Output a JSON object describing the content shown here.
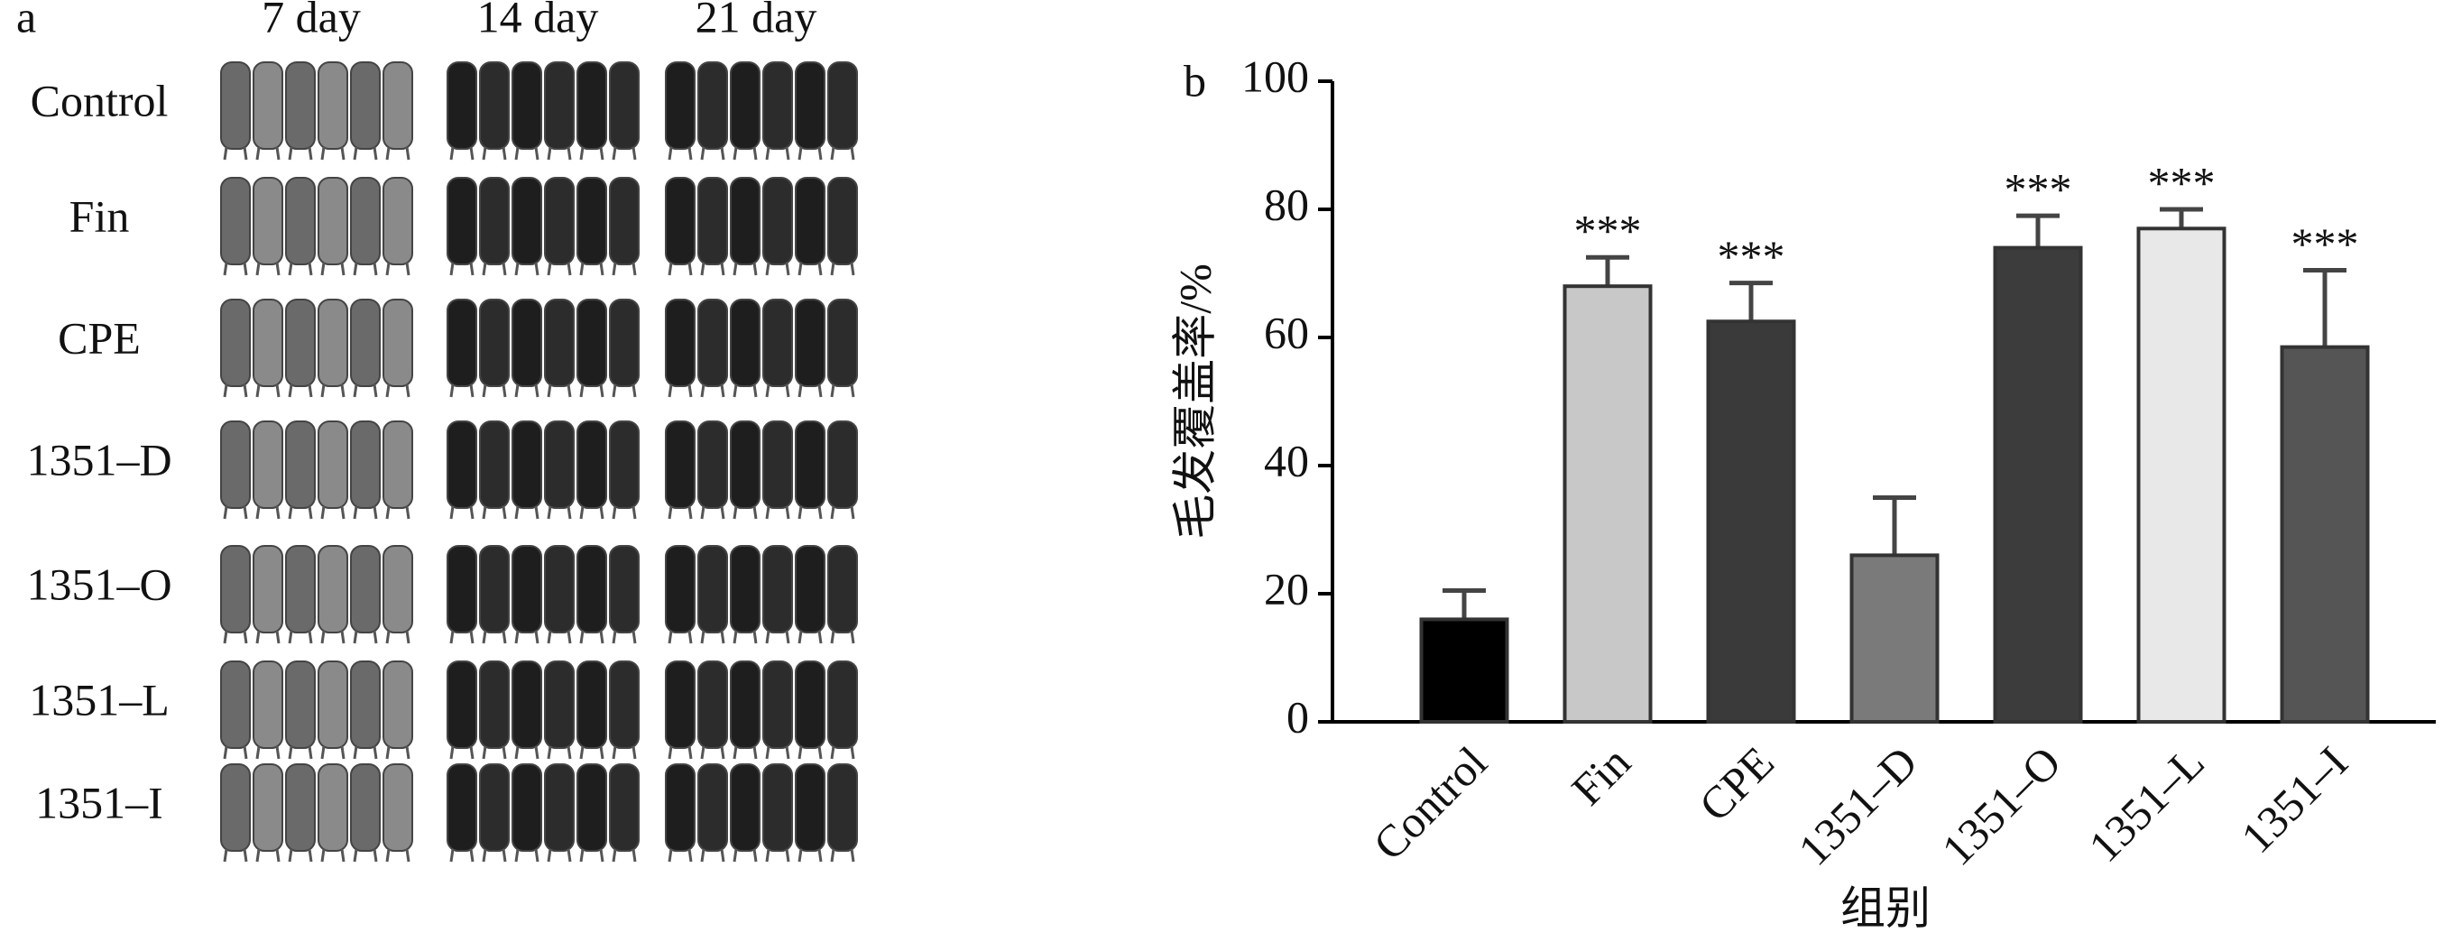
{
  "panel_a": {
    "label": "a",
    "columns": [
      "7 day",
      "14 day",
      "21 day"
    ],
    "rows": [
      "Control",
      "Fin",
      "CPE",
      "1351–D",
      "1351–O",
      "1351–L",
      "1351–I"
    ]
  },
  "chart_data": {
    "type": "bar",
    "label": "b",
    "y_label": "毛发覆盖率/%",
    "x_label": "组别",
    "categories": [
      "Control",
      "Fin",
      "CPE",
      "1351–D",
      "1351–O",
      "1351–L",
      "1351–I"
    ],
    "values": [
      16,
      68,
      62.5,
      26,
      74,
      77,
      58.5
    ],
    "errors": [
      4.5,
      4.5,
      6,
      9,
      5,
      3,
      12
    ],
    "significance": [
      null,
      "***",
      "***",
      null,
      "***",
      "***",
      "***"
    ],
    "colors": [
      "#000000",
      "#c8c8c8",
      "#3a3a3a",
      "#7a7a7a",
      "#3c3c3c",
      "#e8e8e8",
      "#555555"
    ],
    "ylim": [
      0,
      100
    ],
    "yticks": [
      0,
      20,
      40,
      60,
      80,
      100
    ]
  }
}
